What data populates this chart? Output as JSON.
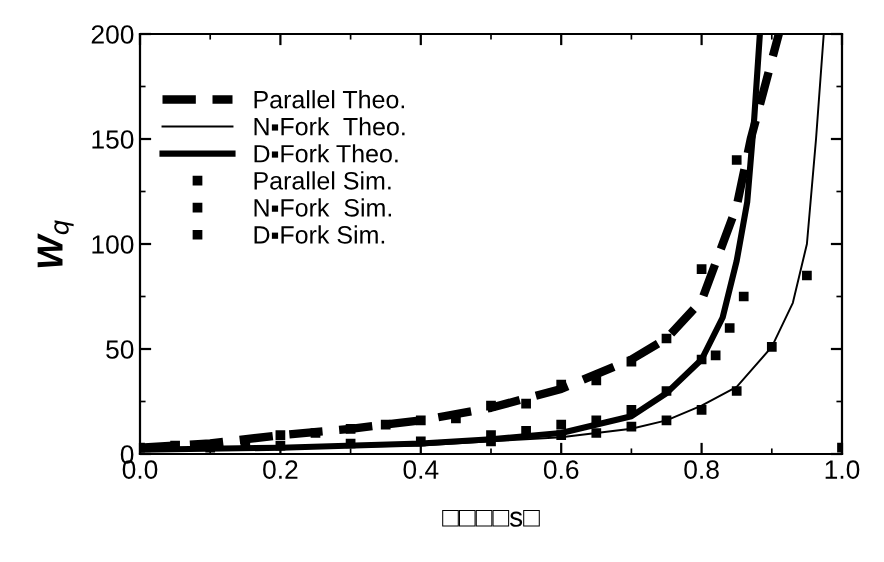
{
  "chart_data": {
    "type": "line",
    "xlabel": "□□□□s□",
    "ylabel": "W$_{q}$",
    "xlim": [
      0.0,
      1.0
    ],
    "xticks": [
      {
        "value": 0,
        "label": "0.0"
      },
      0.2,
      0.4,
      0.6,
      0.8,
      {
        "value": 1,
        "label": "1.0"
      }
    ],
    "ylim": [
      0,
      200
    ],
    "yticks": [
      0,
      50,
      100,
      150,
      200
    ],
    "grid": false,
    "legend": "top left",
    "series": [
      {
        "name": "Parallel Theo.",
        "line_style": "dashed",
        "marker": "none",
        "color": "#000000",
        "x": [
          0,
          0.1,
          0.2,
          0.3,
          0.4,
          0.5,
          0.6,
          0.7,
          0.75,
          0.8,
          0.83,
          0.85,
          0.87,
          0.89,
          0.91
        ],
        "values": [
          3,
          5,
          9,
          12,
          16,
          22,
          31,
          45,
          55,
          73,
          100,
          118,
          150,
          175,
          200
        ]
      },
      {
        "name": "N▪Fork  Theo.",
        "line_style": "solid",
        "marker": "none",
        "color": "#000000",
        "x": [
          0,
          0.2,
          0.4,
          0.5,
          0.6,
          0.7,
          0.75,
          0.8,
          0.85,
          0.9,
          0.93,
          0.95,
          0.963,
          0.974
        ],
        "values": [
          2,
          3,
          4,
          6,
          8,
          12,
          16,
          23,
          32,
          51,
          72,
          100,
          150,
          200
        ]
      },
      {
        "name": "D▪Fork Theo.",
        "line_style": "solid",
        "marker": "none",
        "color": "#000000",
        "x": [
          0,
          0.2,
          0.4,
          0.5,
          0.6,
          0.7,
          0.75,
          0.8,
          0.83,
          0.85,
          0.865,
          0.875,
          0.883
        ],
        "values": [
          2,
          3,
          5,
          7,
          10,
          18,
          29,
          45,
          65,
          92,
          120,
          160,
          200
        ]
      },
      {
        "name": "Parallel Sim.",
        "type": "scatter",
        "marker": "square",
        "color": "#000000",
        "x": [
          0,
          0.05,
          0.1,
          0.15,
          0.2,
          0.25,
          0.3,
          0.35,
          0.4,
          0.45,
          0.5,
          0.55,
          0.6,
          0.65,
          0.7,
          0.75,
          0.8,
          0.85
        ],
        "values": [
          3,
          4,
          null,
          6,
          9,
          10,
          12,
          14,
          16,
          17,
          23,
          24,
          33,
          35,
          44,
          55,
          88,
          140
        ]
      },
      {
        "name": "N▪Fork  Sim.",
        "type": "scatter",
        "marker": "square",
        "color": "#000000",
        "x": [
          0.1,
          0.2,
          0.3,
          0.4,
          0.5,
          0.6,
          0.65,
          0.7,
          0.75,
          0.8,
          0.85,
          0.9,
          0.95,
          1.0
        ],
        "values": [
          3,
          null,
          null,
          null,
          6,
          9,
          10,
          13,
          16,
          21,
          30,
          51,
          85,
          3
        ]
      },
      {
        "name": "D▪Fork Sim.",
        "type": "scatter",
        "marker": "square",
        "color": "#000000",
        "x": [
          0.2,
          0.3,
          0.4,
          0.5,
          0.55,
          0.6,
          0.65,
          0.7,
          0.75,
          0.8,
          0.82,
          0.84,
          0.86
        ],
        "values": [
          4,
          5,
          6,
          9,
          11,
          14,
          16,
          21,
          30,
          45,
          47,
          60,
          75
        ]
      }
    ]
  }
}
